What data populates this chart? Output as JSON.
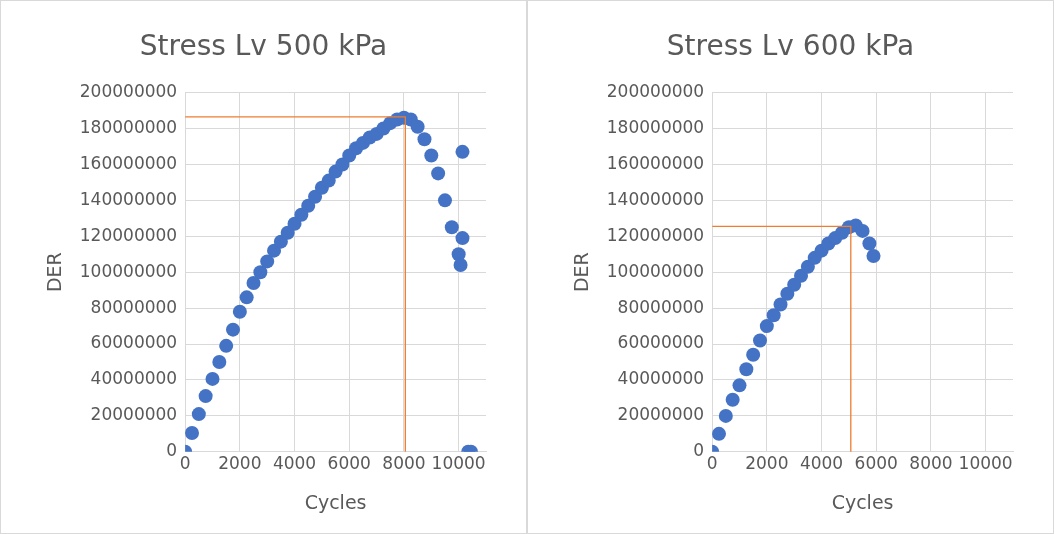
{
  "chart_data": [
    {
      "type": "scatter",
      "title": "Stress Lv 500 kPa",
      "xlabel": "Cycles",
      "ylabel": "DER",
      "xlim": [
        0,
        11000
      ],
      "xticks": [
        0,
        2000,
        4000,
        6000,
        8000,
        10000
      ],
      "ylim": [
        0,
        200000000
      ],
      "yticks": [
        0,
        20000000,
        40000000,
        60000000,
        80000000,
        100000000,
        120000000,
        140000000,
        160000000,
        180000000,
        200000000
      ],
      "grid": true,
      "marker": "circle",
      "series": [
        {
          "color": "#4472c4",
          "x": [
            0,
            250,
            500,
            750,
            1000,
            1250,
            1500,
            1750,
            2000,
            2250,
            2500,
            2750,
            3000,
            3250,
            3500,
            3750,
            4000,
            4250,
            4500,
            4750,
            5000,
            5250,
            5500,
            5750,
            6000,
            6250,
            6500,
            6750,
            7000,
            7250,
            7500,
            7750,
            8000,
            8250,
            8500,
            8750,
            9000,
            9250,
            9500,
            9750,
            10000,
            10070,
            10140,
            10140,
            10350,
            10450
          ],
          "values": [
            0,
            10500000,
            21000000,
            31000000,
            40600000,
            50000000,
            59000000,
            68000000,
            78000000,
            86000000,
            94000000,
            100000000,
            106000000,
            112000000,
            117000000,
            122000000,
            127000000,
            132000000,
            137000000,
            142000000,
            147000000,
            151000000,
            156000000,
            160000000,
            165000000,
            169000000,
            172000000,
            175000000,
            177000000,
            180000000,
            183000000,
            185000000,
            186000000,
            185000000,
            181000000,
            174000000,
            165000000,
            155000000,
            140000000,
            125000000,
            110000000,
            104000000,
            167000000,
            119000000,
            0,
            0
          ]
        },
        {
          "type": "line",
          "color": "#ed7d31",
          "marker": "none",
          "x": [
            0,
            8050,
            8050
          ],
          "values": [
            186500000,
            186500000,
            0
          ]
        }
      ]
    },
    {
      "type": "scatter",
      "title": "Stress Lv 600 kPa",
      "xlabel": "Cycles",
      "ylabel": "DER",
      "xlim": [
        0,
        11000
      ],
      "xticks": [
        0,
        2000,
        4000,
        6000,
        8000,
        10000
      ],
      "ylim": [
        0,
        200000000
      ],
      "yticks": [
        0,
        20000000,
        40000000,
        60000000,
        80000000,
        100000000,
        120000000,
        140000000,
        160000000,
        180000000,
        200000000
      ],
      "grid": true,
      "marker": "circle",
      "series": [
        {
          "color": "#4472c4",
          "x": [
            0,
            250,
            500,
            750,
            1000,
            1250,
            1500,
            1750,
            2000,
            2250,
            2500,
            2750,
            3000,
            3250,
            3500,
            3750,
            4000,
            4250,
            4500,
            4750,
            5000,
            5250,
            5500,
            5750,
            5900
          ],
          "values": [
            0,
            10000000,
            20000000,
            29000000,
            37000000,
            46000000,
            54000000,
            62000000,
            70000000,
            76000000,
            82000000,
            88000000,
            93000000,
            98000000,
            103000000,
            108000000,
            112000000,
            116000000,
            119000000,
            122000000,
            125000000,
            126000000,
            123000000,
            116000000,
            109000000
          ]
        },
        {
          "type": "line",
          "color": "#ed7d31",
          "marker": "none",
          "x": [
            0,
            5070,
            5070
          ],
          "values": [
            125500000,
            125500000,
            0
          ]
        }
      ]
    }
  ]
}
